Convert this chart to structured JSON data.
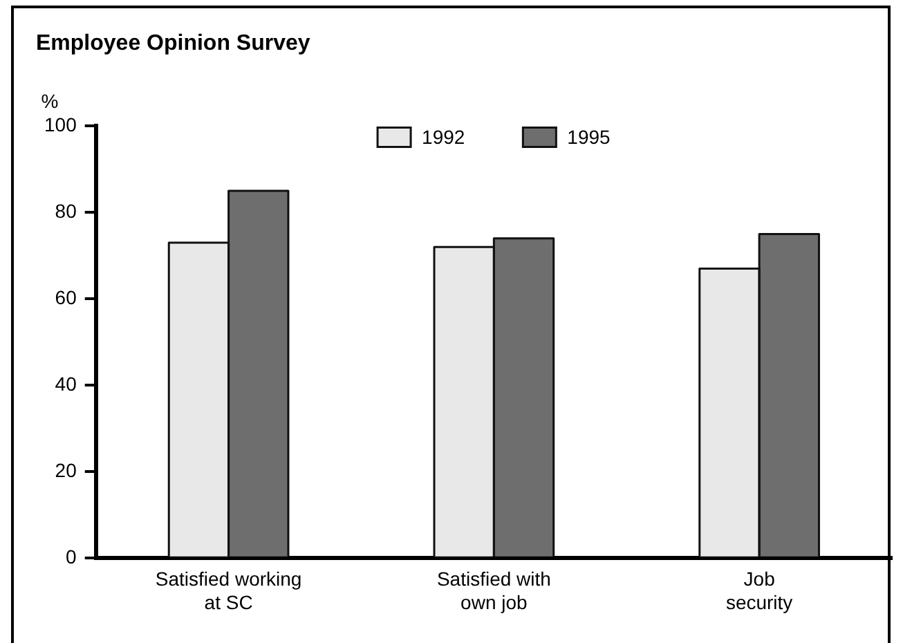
{
  "chart_data": {
    "type": "bar",
    "title": "Employee Opinion Survey",
    "ylabel": "%",
    "categories": [
      "Satisfied working at SC",
      "Satisfied with own job",
      "Job security"
    ],
    "series": [
      {
        "name": "1992",
        "color": "#e8e8e8",
        "values": [
          73,
          72,
          67
        ]
      },
      {
        "name": "1995",
        "color": "#6e6e6e",
        "values": [
          85,
          74,
          75
        ]
      }
    ],
    "ylim": [
      0,
      100
    ],
    "yticks": [
      0,
      20,
      40,
      60,
      80,
      100
    ],
    "grid": false,
    "legend": "top"
  }
}
